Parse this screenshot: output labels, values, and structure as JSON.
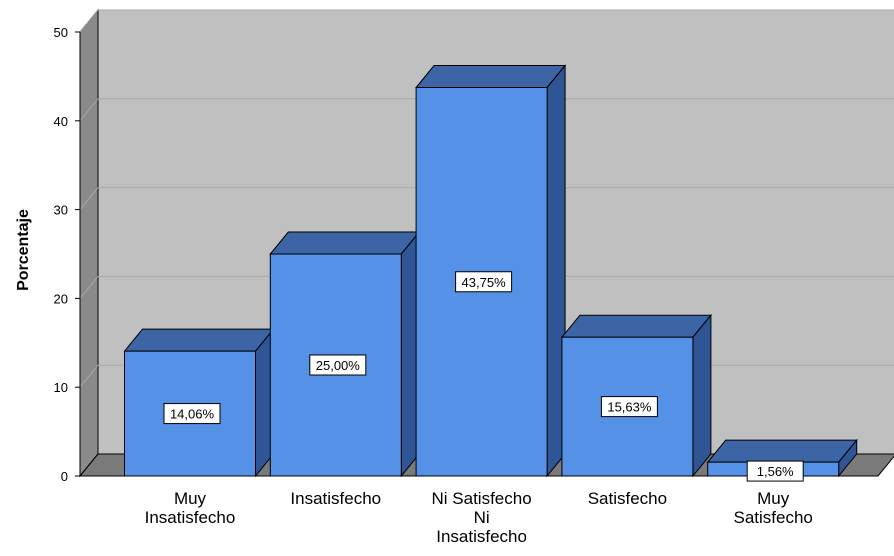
{
  "chart_data": {
    "type": "bar",
    "title": "",
    "xlabel": "",
    "ylabel": "Porcentaje",
    "ylim": [
      0,
      50
    ],
    "yticks": [
      0,
      10,
      20,
      30,
      40,
      50
    ],
    "grid": true,
    "three_d": true,
    "categories": [
      [
        "Muy",
        "Insatisfecho"
      ],
      [
        "Insatisfecho"
      ],
      [
        "Ni Satisfecho",
        "Ni",
        "Insatisfecho"
      ],
      [
        "Satisfecho"
      ],
      [
        "Muy",
        "Satisfecho"
      ]
    ],
    "values": [
      14.06,
      25.0,
      43.75,
      15.63,
      1.56
    ],
    "data_labels": [
      "14,06%",
      "25,00%",
      "43,75%",
      "15,63%",
      "1,56%"
    ],
    "colors": {
      "bar_front": "#5591e6",
      "bar_top": "#3d64a4",
      "bar_side": "#2f5594",
      "wall": "#c0c0c0",
      "wall_side": "#8a8a8a",
      "floor": "#7a7a7a",
      "grid": "#a9a9a9"
    }
  }
}
